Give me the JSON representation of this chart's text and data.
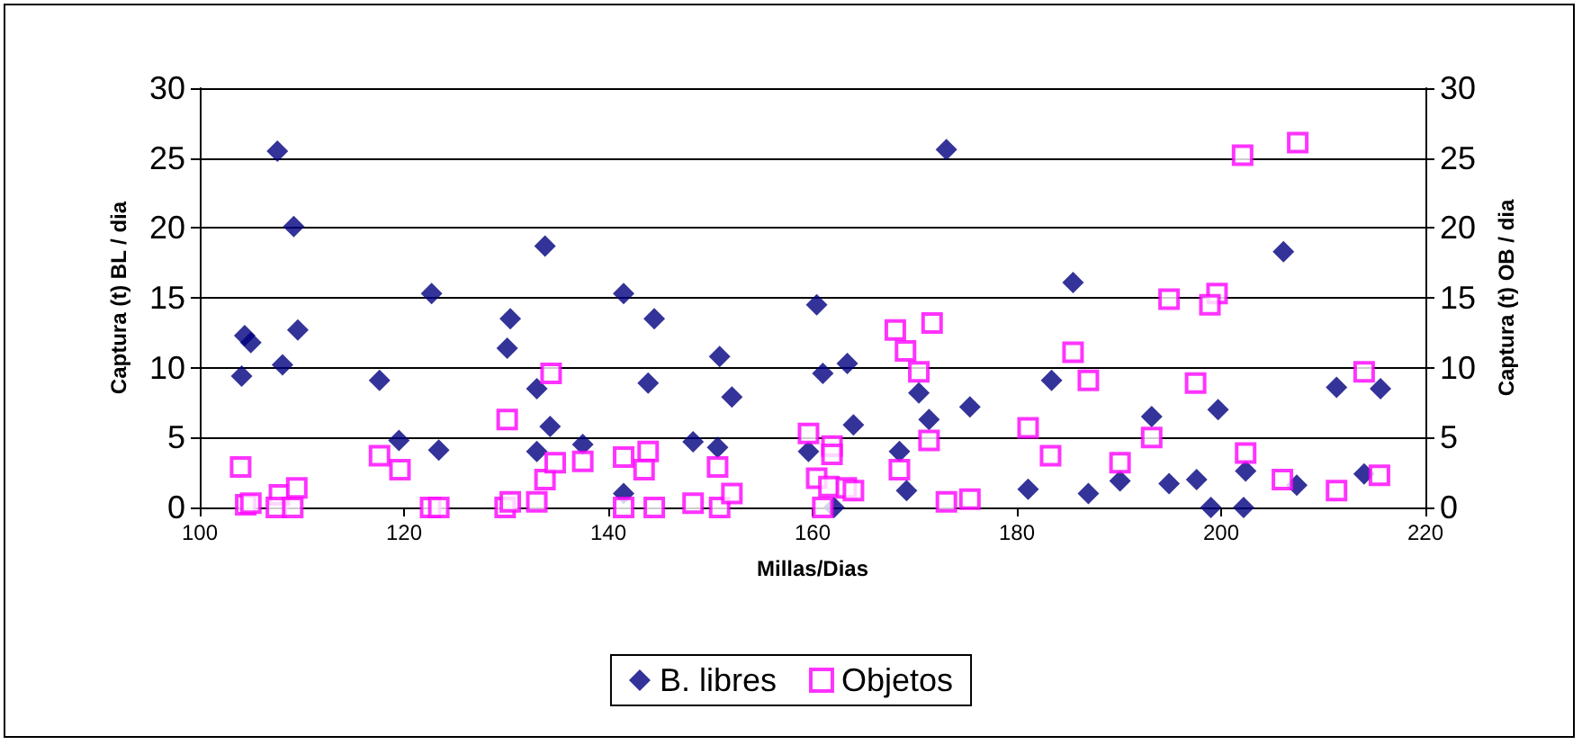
{
  "chart_data": {
    "type": "scatter",
    "xlabel": "Millas/Dias",
    "ylabel": "Captura (t) BL / dia",
    "y2label": "Captura (t) OB / dia",
    "xlim": [
      100,
      220
    ],
    "xticks": [
      100,
      120,
      140,
      160,
      180,
      200,
      220
    ],
    "ylim": [
      0,
      30
    ],
    "yticks": [
      0,
      5,
      10,
      15,
      20,
      25,
      30
    ],
    "y2lim": [
      0,
      30
    ],
    "y2ticks": [
      0,
      5,
      10,
      15,
      20,
      25,
      30
    ],
    "grid": "y",
    "legend": "bottom",
    "series": [
      {
        "name": "B. libres",
        "color": "#000080",
        "marker": "diamond",
        "x": [
          104.1,
          104.4,
          105,
          107.6,
          109.2,
          108.1,
          109.6,
          117.6,
          119.5,
          122.7,
          123.4,
          130.4,
          130.1,
          133,
          133.8,
          134.3,
          133,
          137.5,
          141.5,
          141.5,
          144.5,
          143.9,
          148.3,
          150.9,
          152.1,
          150.7,
          160.4,
          161,
          163.4,
          164,
          159.6,
          162.1,
          170.4,
          171.4,
          168.5,
          169.2,
          173.1,
          175.4,
          181.1,
          183.4,
          185.5,
          187,
          190.1,
          193.2,
          194.9,
          197.6,
          199,
          199.7,
          202.2,
          202.4,
          206.1,
          207.4,
          211.3,
          214,
          215.6
        ],
        "values": [
          9.4,
          12.3,
          11.8,
          25.5,
          20.1,
          10.2,
          12.7,
          9.1,
          4.8,
          15.3,
          4.1,
          13.5,
          11.4,
          8.5,
          18.7,
          5.8,
          4,
          4.5,
          15.3,
          1,
          13.5,
          8.9,
          4.7,
          10.8,
          7.9,
          4.3,
          14.5,
          9.6,
          10.3,
          5.9,
          4,
          0,
          8.2,
          6.3,
          4,
          1.2,
          25.6,
          7.2,
          1.3,
          9.1,
          16.1,
          1,
          1.9,
          6.5,
          1.7,
          2,
          0,
          7,
          0,
          2.6,
          18.3,
          1.6,
          8.6,
          2.4,
          8.5
        ]
      },
      {
        "name": "Objetos",
        "color": "#ff00ff",
        "marker": "square",
        "axis": "y2",
        "x": [
          104,
          104.5,
          105,
          107.8,
          107.5,
          109.1,
          109.5,
          117.6,
          119.6,
          122.6,
          123.4,
          130.1,
          129.9,
          130.4,
          133,
          133.8,
          134.8,
          134.4,
          137.5,
          141.5,
          141.5,
          143.9,
          143.5,
          144.5,
          148.3,
          150.7,
          150.9,
          152.1,
          159.6,
          161.9,
          161.9,
          160.4,
          161.6,
          161,
          163.3,
          164,
          168.1,
          169.1,
          170.4,
          171.7,
          171.4,
          168.5,
          173.1,
          175.4,
          181.1,
          183.3,
          185.5,
          187,
          190.1,
          193.2,
          194.9,
          197.5,
          199.6,
          198.9,
          202.1,
          202.4,
          207.5,
          206,
          211.3,
          214,
          215.5
        ],
        "values": [
          2.9,
          0.2,
          0.3,
          0.9,
          0,
          0,
          1.4,
          3.7,
          2.7,
          0,
          0,
          6.3,
          0,
          0.4,
          0.4,
          2,
          3.2,
          9.6,
          3.3,
          3.6,
          0,
          4,
          2.7,
          0,
          0.3,
          2.9,
          0,
          1,
          5.3,
          4.4,
          3.8,
          2.1,
          1.5,
          0,
          1.4,
          1.2,
          12.7,
          11.2,
          9.7,
          13.2,
          4.8,
          2.7,
          0.4,
          0.6,
          5.7,
          3.7,
          11.1,
          9.1,
          3.2,
          5,
          14.9,
          8.9,
          15.3,
          14.5,
          25.2,
          3.9,
          26.1,
          2,
          1.2,
          9.7,
          2.3
        ]
      }
    ]
  }
}
